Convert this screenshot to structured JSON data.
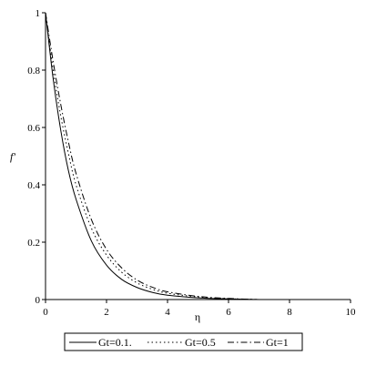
{
  "chart_data": {
    "type": "line",
    "title": "",
    "xlabel": "η",
    "ylabel": "f'",
    "xlim": [
      0,
      10
    ],
    "ylim": [
      0,
      1
    ],
    "x_ticks": [
      "0",
      "2",
      "4",
      "6",
      "8",
      "10"
    ],
    "y_ticks": [
      "0",
      "0.2",
      "0.4",
      "0.6",
      "0.8",
      "1"
    ],
    "grid": false,
    "legend_position": "bottom",
    "series": [
      {
        "name": "Gt=0.1.",
        "style": "solid",
        "x": [
          0,
          0.25,
          0.5,
          0.75,
          1,
          1.5,
          2,
          2.5,
          3,
          3.5,
          4,
          5,
          6,
          7
        ],
        "y": [
          1.0,
          0.77,
          0.59,
          0.45,
          0.35,
          0.205,
          0.12,
          0.07,
          0.042,
          0.025,
          0.015,
          0.006,
          0.002,
          0.0
        ]
      },
      {
        "name": "Gt=0.5",
        "style": "dotted",
        "x": [
          0,
          0.25,
          0.5,
          0.75,
          1,
          1.5,
          2,
          2.5,
          3,
          3.5,
          4,
          5,
          6,
          7
        ],
        "y": [
          1.0,
          0.8,
          0.64,
          0.51,
          0.4,
          0.25,
          0.155,
          0.095,
          0.058,
          0.036,
          0.022,
          0.009,
          0.003,
          0.0
        ]
      },
      {
        "name": "Gt=1",
        "style": "dashdot",
        "x": [
          0,
          0.25,
          0.5,
          0.75,
          1,
          1.5,
          2,
          2.5,
          3,
          3.5,
          4,
          5,
          6,
          7
        ],
        "y": [
          1.0,
          0.83,
          0.68,
          0.55,
          0.44,
          0.28,
          0.175,
          0.11,
          0.068,
          0.043,
          0.027,
          0.011,
          0.004,
          0.0
        ]
      }
    ]
  }
}
